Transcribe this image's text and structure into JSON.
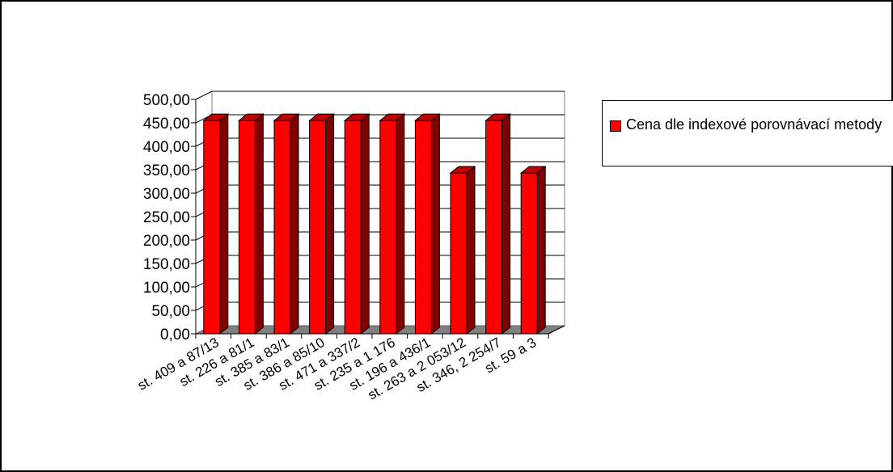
{
  "chart_data": {
    "type": "bar",
    "style": "3d-column",
    "categories": [
      "st. 409 a 87/13",
      "st. 226 a 81/1",
      "st. 385 a 83/1",
      "st. 386 a 85/10",
      "st. 471 a 337/2",
      "st. 235 a 1 176",
      "st. 196 a 436/1",
      "st. 263 a 2 053/12",
      "st. 346, 2 254/7",
      "st. 59 a 3"
    ],
    "series": [
      {
        "name": "Cena  dle indexové porovnávací metody",
        "values": [
          455,
          455,
          455,
          455,
          455,
          455,
          455,
          343,
          455,
          343
        ],
        "color": "#ff0000"
      }
    ],
    "yticks": [
      "0,00",
      "50,00",
      "100,00",
      "150,00",
      "200,00",
      "250,00",
      "300,00",
      "350,00",
      "400,00",
      "450,00",
      "500,00"
    ],
    "ylim": [
      0,
      500
    ],
    "grid": true,
    "legend": "right"
  }
}
